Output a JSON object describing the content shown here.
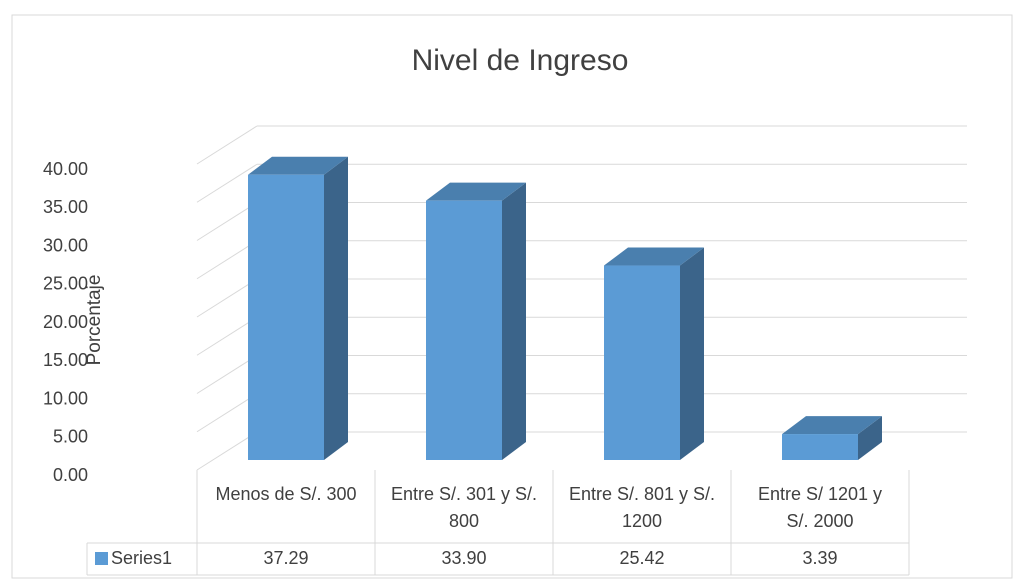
{
  "chart_data": {
    "type": "bar3d",
    "title": "Nivel de Ingreso",
    "y_label": "Porcentaje",
    "categories": [
      "Menos de S/. 300",
      "Entre S/. 301 y S/. 800",
      "Entre S/. 801 y S/. 1200",
      "Entre S/ 1201 y S/. 2000"
    ],
    "series": [
      {
        "name": "Series1",
        "color": "#5b9bd5",
        "values": [
          37.29,
          33.9,
          25.42,
          3.39
        ],
        "value_labels": [
          "37.29",
          "33.90",
          "25.42",
          "3.39"
        ]
      }
    ],
    "ylim": [
      0,
      40
    ],
    "yticks": [
      {
        "value": 0,
        "label": "0.00"
      },
      {
        "value": 5,
        "label": "5.00"
      },
      {
        "value": 10,
        "label": "10.00"
      },
      {
        "value": 15,
        "label": "15.00"
      },
      {
        "value": 20,
        "label": "20.00"
      },
      {
        "value": 25,
        "label": "25.00"
      },
      {
        "value": 30,
        "label": "30.00"
      },
      {
        "value": 35,
        "label": "35.00"
      },
      {
        "value": 40,
        "label": "40.00"
      }
    ],
    "grid": true,
    "data_table": true
  }
}
